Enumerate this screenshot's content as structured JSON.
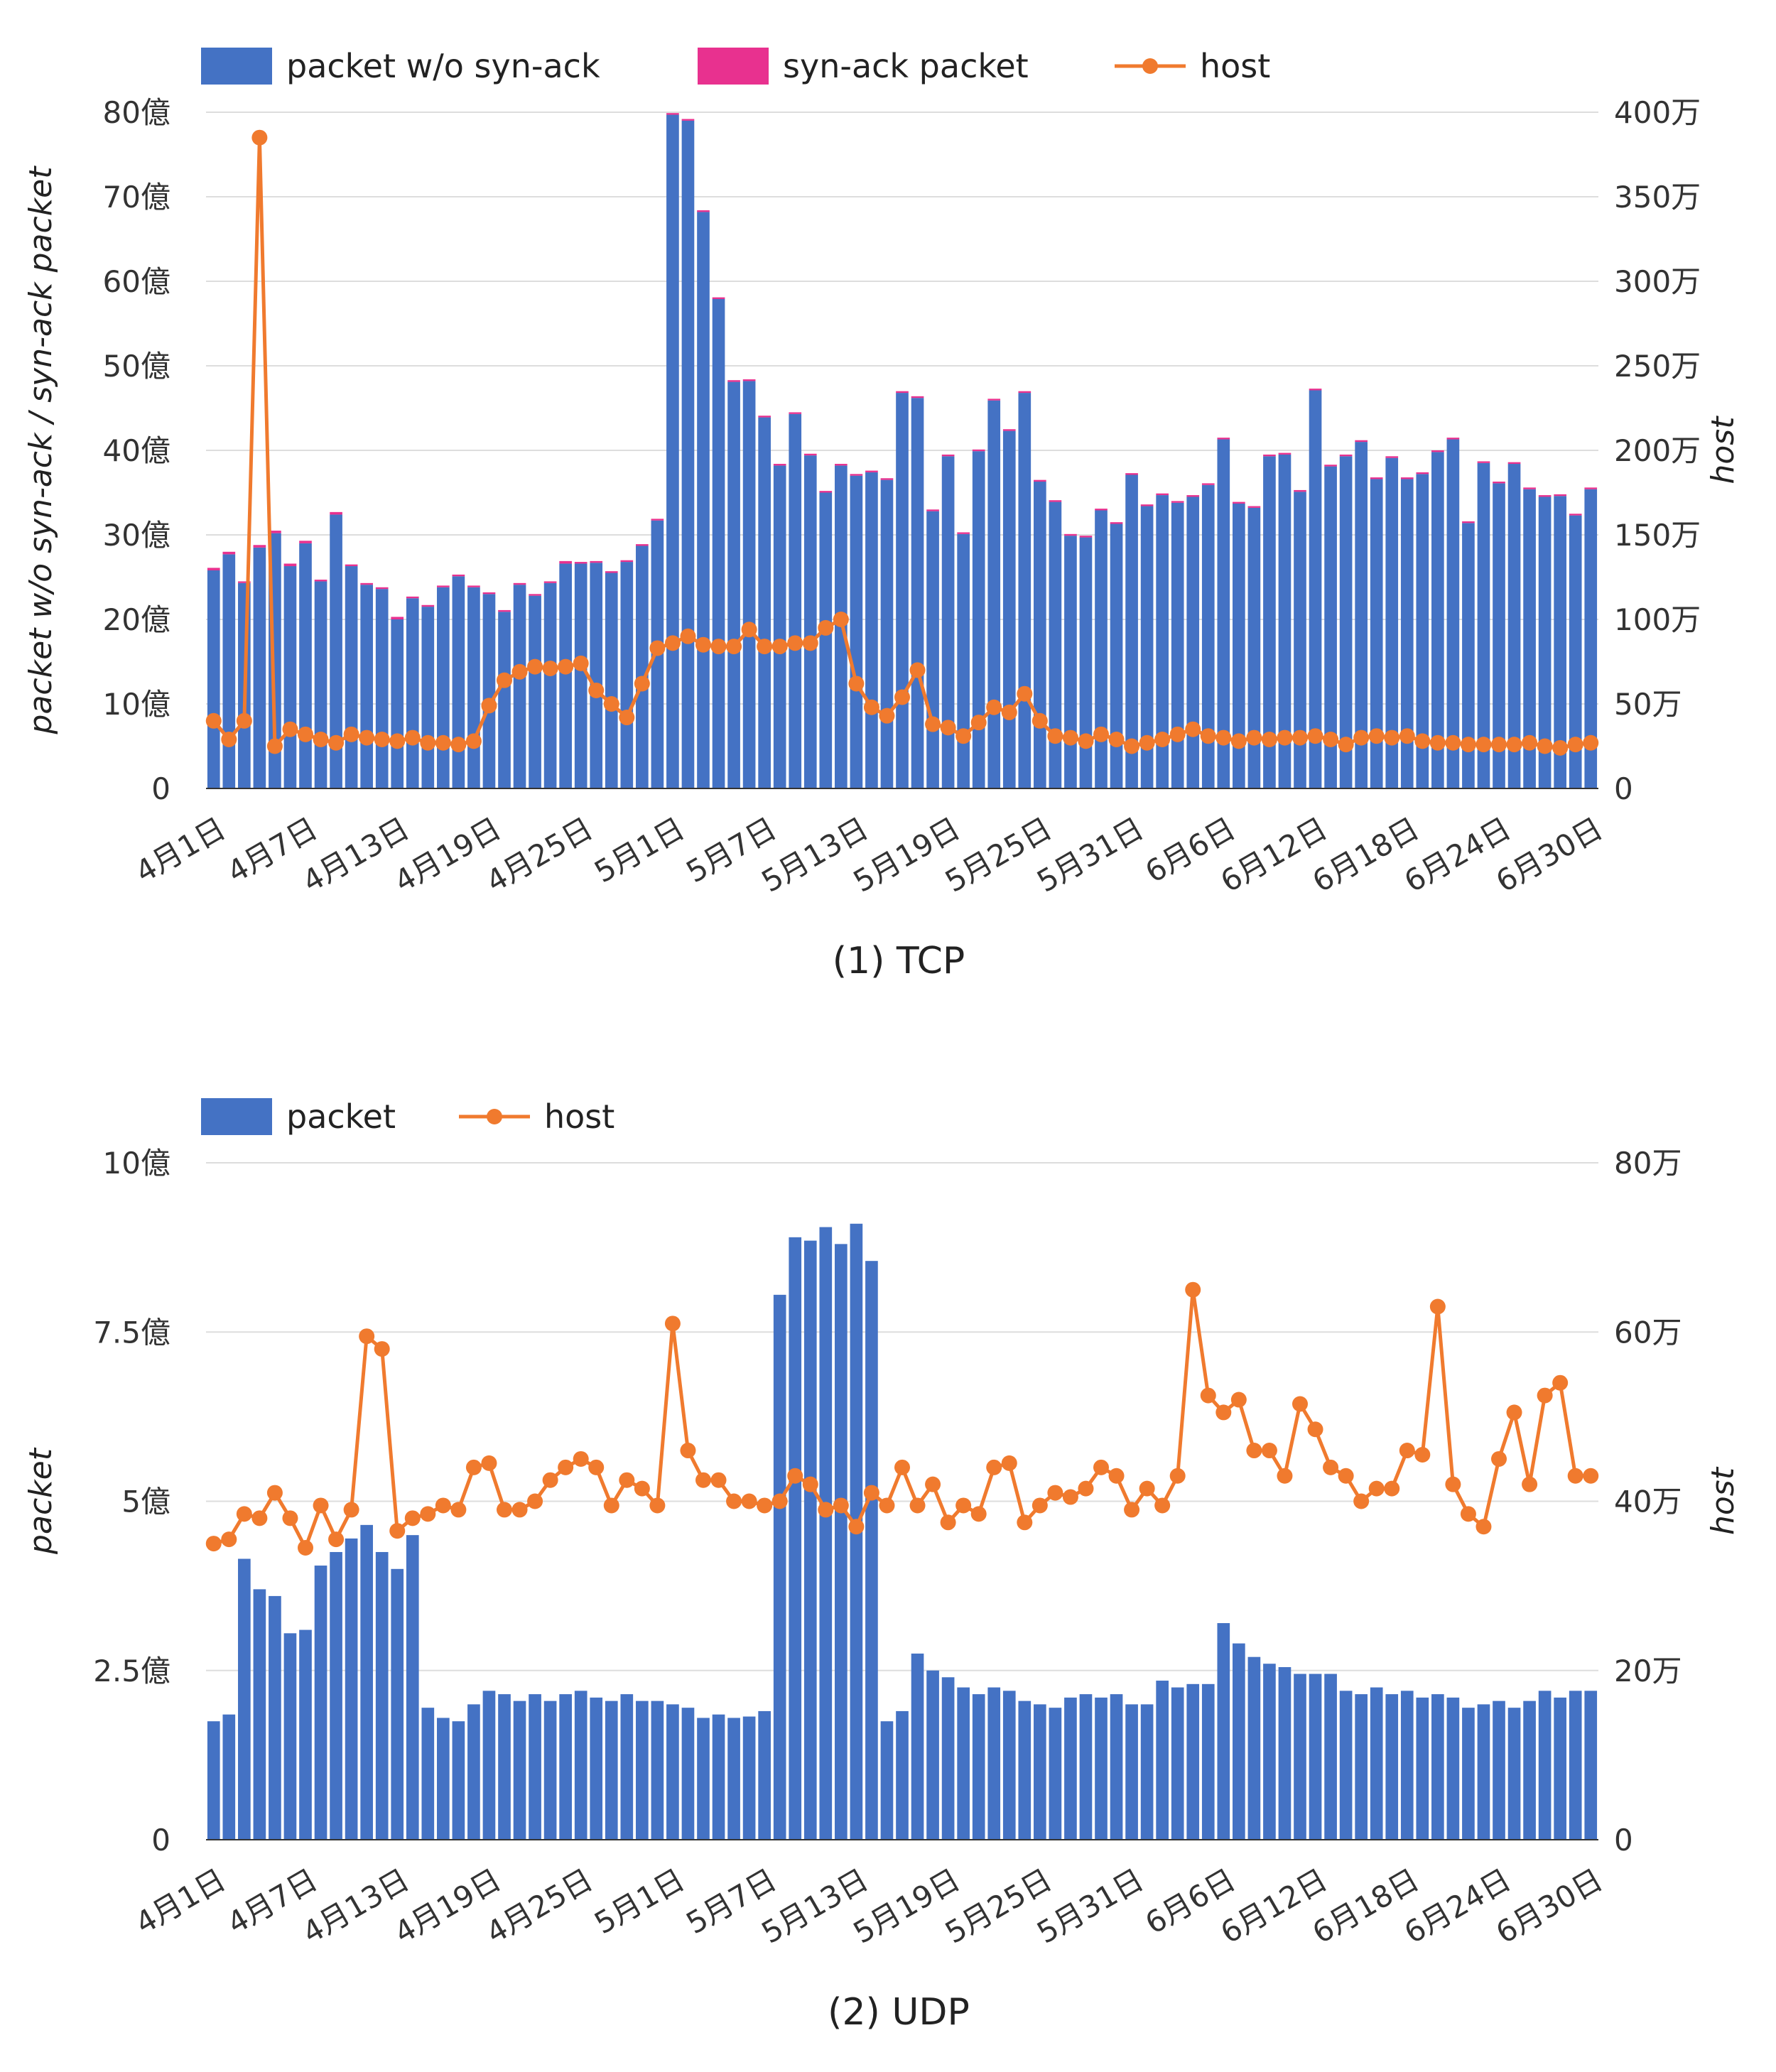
{
  "colors": {
    "packet": "#4472c4",
    "synack": "#e8318f",
    "host": "#f07a2e",
    "grid": "#dddddd"
  },
  "chart_data": [
    {
      "type": "bar",
      "stacked": true,
      "caption": "(1) TCP",
      "left_axis_title": "packet w/o syn-ack / syn-ack packet",
      "right_axis_title": "host",
      "legend_placement": "top-left",
      "grid": true,
      "x": [
        "4月1日",
        "4月2日",
        "4月3日",
        "4月4日",
        "4月5日",
        "4月6日",
        "4月7日",
        "4月8日",
        "4月9日",
        "4月10日",
        "4月11日",
        "4月12日",
        "4月13日",
        "4月14日",
        "4月15日",
        "4月16日",
        "4月17日",
        "4月18日",
        "4月19日",
        "4月20日",
        "4月21日",
        "4月22日",
        "4月23日",
        "4月24日",
        "4月25日",
        "4月26日",
        "4月27日",
        "4月28日",
        "4月29日",
        "4月30日",
        "5月1日",
        "5月2日",
        "5月3日",
        "5月4日",
        "5月5日",
        "5月6日",
        "5月7日",
        "5月8日",
        "5月9日",
        "5月10日",
        "5月11日",
        "5月12日",
        "5月13日",
        "5月14日",
        "5月15日",
        "5月16日",
        "5月17日",
        "5月18日",
        "5月19日",
        "5月20日",
        "5月21日",
        "5月22日",
        "5月23日",
        "5月24日",
        "5月25日",
        "5月26日",
        "5月27日",
        "5月28日",
        "5月29日",
        "5月30日",
        "5月31日",
        "6月1日",
        "6月2日",
        "6月3日",
        "6月4日",
        "6月5日",
        "6月6日",
        "6月7日",
        "6月8日",
        "6月9日",
        "6月10日",
        "6月11日",
        "6月12日",
        "6月13日",
        "6月14日",
        "6月15日",
        "6月16日",
        "6月17日",
        "6月18日",
        "6月19日",
        "6月20日",
        "6月21日",
        "6月22日",
        "6月23日",
        "6月24日",
        "6月25日",
        "6月26日",
        "6月27日",
        "6月28日",
        "6月29日",
        "6月30日"
      ],
      "x_tick_labels": [
        {
          "index": 0,
          "label": "4月1日"
        },
        {
          "index": 6,
          "label": "4月7日"
        },
        {
          "index": 12,
          "label": "4月13日"
        },
        {
          "index": 18,
          "label": "4月19日"
        },
        {
          "index": 24,
          "label": "4月25日"
        },
        {
          "index": 30,
          "label": "5月1日"
        },
        {
          "index": 36,
          "label": "5月7日"
        },
        {
          "index": 42,
          "label": "5月13日"
        },
        {
          "index": 48,
          "label": "5月19日"
        },
        {
          "index": 54,
          "label": "5月25日"
        },
        {
          "index": 60,
          "label": "5月31日"
        },
        {
          "index": 66,
          "label": "6月6日"
        },
        {
          "index": 72,
          "label": "6月12日"
        },
        {
          "index": 78,
          "label": "6月18日"
        },
        {
          "index": 84,
          "label": "6月24日"
        },
        {
          "index": 90,
          "label": "6月30日"
        }
      ],
      "left_axis": {
        "min": 0,
        "max": 8000000000,
        "ticks": [
          0,
          1000000000,
          2000000000,
          3000000000,
          4000000000,
          5000000000,
          6000000000,
          7000000000,
          8000000000
        ],
        "tick_labels": [
          "0",
          "10億",
          "20億",
          "30億",
          "40億",
          "50億",
          "60億",
          "70億",
          "80億"
        ]
      },
      "right_axis": {
        "min": 0,
        "max": 4000000,
        "ticks": [
          0,
          500000,
          1000000,
          1500000,
          2000000,
          2500000,
          3000000,
          3500000,
          4000000
        ],
        "tick_labels": [
          "0",
          "50万",
          "100万",
          "150万",
          "200万",
          "250万",
          "300万",
          "350万",
          "400万"
        ]
      },
      "series": [
        {
          "name": "packet w/o syn-ack",
          "kind": "bar",
          "axis": "left",
          "color_key": "packet",
          "values": [
            2580000000,
            2770000000,
            2430000000,
            2850000000,
            3020000000,
            2630000000,
            2900000000,
            2450000000,
            3240000000,
            2630000000,
            2410000000,
            2360000000,
            2000000000,
            2250000000,
            2150000000,
            2380000000,
            2510000000,
            2380000000,
            2300000000,
            2090000000,
            2410000000,
            2280000000,
            2430000000,
            2660000000,
            2660000000,
            2670000000,
            2550000000,
            2680000000,
            2870000000,
            3170000000,
            7970000000,
            7900000000,
            6820000000,
            5790000000,
            4810000000,
            4820000000,
            4390000000,
            3820000000,
            4430000000,
            3940000000,
            3500000000,
            3820000000,
            3700000000,
            3740000000,
            3650000000,
            4680000000,
            4620000000,
            3280000000,
            3930000000,
            3010000000,
            3990000000,
            4590000000,
            4230000000,
            4680000000,
            3630000000,
            3390000000,
            2990000000,
            2970000000,
            3290000000,
            3130000000,
            3710000000,
            3340000000,
            3470000000,
            3380000000,
            3450000000,
            3590000000,
            4130000000,
            3370000000,
            3320000000,
            3930000000,
            3950000000,
            3510000000,
            4710000000,
            3810000000,
            3930000000,
            4100000000,
            3660000000,
            3910000000,
            3660000000,
            3720000000,
            3980000000,
            4130000000,
            3140000000,
            3850000000,
            3610000000,
            3840000000,
            3540000000,
            3450000000,
            3460000000,
            3230000000,
            3540000000
          ]
        },
        {
          "name": "syn-ack packet",
          "kind": "bar",
          "axis": "left",
          "color_key": "synack",
          "values": [
            30000000,
            30000000,
            20000000,
            30000000,
            30000000,
            30000000,
            30000000,
            20000000,
            30000000,
            20000000,
            20000000,
            20000000,
            30000000,
            20000000,
            20000000,
            20000000,
            20000000,
            20000000,
            20000000,
            20000000,
            20000000,
            20000000,
            20000000,
            30000000,
            20000000,
            20000000,
            20000000,
            20000000,
            20000000,
            20000000,
            20000000,
            20000000,
            20000000,
            20000000,
            20000000,
            20000000,
            20000000,
            20000000,
            20000000,
            20000000,
            20000000,
            20000000,
            20000000,
            20000000,
            20000000,
            20000000,
            20000000,
            20000000,
            20000000,
            20000000,
            20000000,
            20000000,
            20000000,
            20000000,
            20000000,
            20000000,
            20000000,
            20000000,
            20000000,
            20000000,
            20000000,
            20000000,
            20000000,
            20000000,
            20000000,
            20000000,
            20000000,
            20000000,
            20000000,
            20000000,
            20000000,
            20000000,
            20000000,
            20000000,
            20000000,
            20000000,
            20000000,
            20000000,
            20000000,
            20000000,
            20000000,
            20000000,
            20000000,
            20000000,
            20000000,
            20000000,
            20000000,
            20000000,
            20000000,
            20000000,
            20000000
          ]
        },
        {
          "name": "host",
          "kind": "line",
          "axis": "right",
          "color_key": "host",
          "values": [
            400000,
            290000,
            400000,
            3850000,
            250000,
            350000,
            320000,
            290000,
            270000,
            320000,
            300000,
            290000,
            280000,
            300000,
            270000,
            270000,
            260000,
            280000,
            490000,
            640000,
            690000,
            720000,
            710000,
            720000,
            740000,
            580000,
            500000,
            420000,
            620000,
            830000,
            860000,
            900000,
            850000,
            840000,
            840000,
            940000,
            840000,
            840000,
            860000,
            860000,
            950000,
            1000000,
            620000,
            480000,
            430000,
            540000,
            700000,
            380000,
            360000,
            310000,
            390000,
            480000,
            450000,
            560000,
            400000,
            310000,
            300000,
            280000,
            320000,
            290000,
            250000,
            270000,
            290000,
            320000,
            350000,
            310000,
            300000,
            280000,
            300000,
            290000,
            300000,
            300000,
            310000,
            290000,
            260000,
            300000,
            310000,
            300000,
            310000,
            280000,
            270000,
            270000,
            260000,
            260000,
            260000,
            260000,
            270000,
            250000,
            240000,
            260000,
            270000
          ]
        }
      ]
    },
    {
      "type": "bar",
      "stacked": false,
      "caption": "(2) UDP",
      "left_axis_title": "packet",
      "right_axis_title": "host",
      "legend_placement": "top-left",
      "grid": true,
      "x_tick_labels": [
        {
          "index": 0,
          "label": "4月1日"
        },
        {
          "index": 6,
          "label": "4月7日"
        },
        {
          "index": 12,
          "label": "4月13日"
        },
        {
          "index": 18,
          "label": "4月19日"
        },
        {
          "index": 24,
          "label": "4月25日"
        },
        {
          "index": 30,
          "label": "5月1日"
        },
        {
          "index": 36,
          "label": "5月7日"
        },
        {
          "index": 42,
          "label": "5月13日"
        },
        {
          "index": 48,
          "label": "5月19日"
        },
        {
          "index": 54,
          "label": "5月25日"
        },
        {
          "index": 60,
          "label": "5月31日"
        },
        {
          "index": 66,
          "label": "6月6日"
        },
        {
          "index": 72,
          "label": "6月12日"
        },
        {
          "index": 78,
          "label": "6月18日"
        },
        {
          "index": 84,
          "label": "6月24日"
        },
        {
          "index": 90,
          "label": "6月30日"
        }
      ],
      "left_axis": {
        "min": 0,
        "max": 1000000000,
        "ticks": [
          0,
          250000000,
          500000000,
          750000000,
          1000000000
        ],
        "tick_labels": [
          "0",
          "2.5億",
          "5億",
          "7.5億",
          "10億"
        ]
      },
      "right_axis": {
        "min": 0,
        "max": 800000,
        "ticks": [
          0,
          200000,
          400000,
          600000,
          800000
        ],
        "tick_labels": [
          "0",
          "20万",
          "40万",
          "60万",
          "80万"
        ]
      },
      "series": [
        {
          "name": "packet",
          "kind": "bar",
          "axis": "left",
          "color_key": "packet",
          "values": [
            175000000,
            185000000,
            415000000,
            370000000,
            360000000,
            305000000,
            310000000,
            405000000,
            425000000,
            445000000,
            465000000,
            425000000,
            400000000,
            450000000,
            195000000,
            180000000,
            175000000,
            200000000,
            220000000,
            215000000,
            205000000,
            215000000,
            205000000,
            215000000,
            220000000,
            210000000,
            205000000,
            215000000,
            205000000,
            205000000,
            200000000,
            195000000,
            180000000,
            185000000,
            180000000,
            182000000,
            190000000,
            805000000,
            890000000,
            885000000,
            905000000,
            880000000,
            910000000,
            855000000,
            175000000,
            190000000,
            275000000,
            250000000,
            240000000,
            225000000,
            215000000,
            225000000,
            220000000,
            205000000,
            200000000,
            195000000,
            210000000,
            215000000,
            210000000,
            215000000,
            200000000,
            200000000,
            235000000,
            225000000,
            230000000,
            230000000,
            320000000,
            290000000,
            270000000,
            260000000,
            255000000,
            245000000,
            245000000,
            245000000,
            220000000,
            215000000,
            225000000,
            215000000,
            220000000,
            210000000,
            215000000,
            210000000,
            195000000,
            200000000,
            205000000,
            195000000,
            205000000,
            220000000,
            210000000,
            220000000,
            220000000
          ]
        },
        {
          "name": "host",
          "kind": "line",
          "axis": "right",
          "color_key": "host",
          "values": [
            350000,
            355000,
            385000,
            380000,
            410000,
            380000,
            345000,
            395000,
            355000,
            390000,
            595000,
            580000,
            365000,
            380000,
            385000,
            395000,
            390000,
            440000,
            445000,
            390000,
            390000,
            400000,
            425000,
            440000,
            450000,
            440000,
            395000,
            425000,
            415000,
            395000,
            610000,
            460000,
            425000,
            425000,
            400000,
            400000,
            395000,
            400000,
            430000,
            420000,
            390000,
            395000,
            370000,
            410000,
            395000,
            440000,
            395000,
            420000,
            375000,
            395000,
            385000,
            440000,
            445000,
            375000,
            395000,
            410000,
            405000,
            415000,
            440000,
            430000,
            390000,
            415000,
            395000,
            430000,
            650000,
            525000,
            505000,
            520000,
            460000,
            460000,
            430000,
            515000,
            485000,
            440000,
            430000,
            400000,
            415000,
            415000,
            460000,
            455000,
            630000,
            420000,
            385000,
            370000,
            450000,
            505000,
            420000,
            525000,
            540000,
            430000,
            430000
          ]
        }
      ]
    }
  ]
}
